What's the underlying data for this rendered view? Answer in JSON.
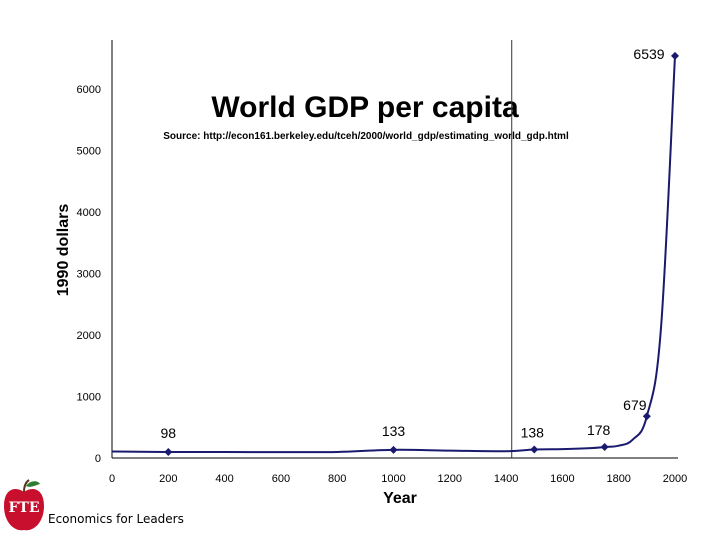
{
  "chart_data": {
    "type": "line",
    "title": "World GDP per capita",
    "subtitle": "Source: http://econ161.berkeley.edu/tceh/2000/world_gdp/estimating_world_gdp.html",
    "xlabel": "Year",
    "ylabel": "1990 dollars",
    "xlim": [
      0,
      2000
    ],
    "ylim": [
      0,
      7000
    ],
    "x_ticks": [
      0,
      200,
      400,
      600,
      800,
      1000,
      1200,
      1400,
      1600,
      1800,
      2000
    ],
    "y_ticks": [
      0,
      1000,
      2000,
      3000,
      4000,
      5000,
      6000
    ],
    "series": [
      {
        "name": "World GDP per capita",
        "color": "#1a1a6e",
        "x": [
          0,
          200,
          400,
          600,
          800,
          1000,
          1200,
          1400,
          1500,
          1600,
          1700,
          1750,
          1800,
          1850,
          1900,
          1950,
          2000
        ],
        "y": [
          105,
          98,
          97,
          96,
          98,
          133,
          120,
          110,
          138,
          145,
          160,
          178,
          200,
          300,
          679,
          2100,
          6539
        ]
      }
    ],
    "markers": [
      {
        "x": 200,
        "y": 98,
        "label": "98"
      },
      {
        "x": 1000,
        "y": 133,
        "label": "133"
      },
      {
        "x": 1500,
        "y": 138,
        "label": "138"
      },
      {
        "x": 1750,
        "y": 178,
        "label": "178"
      },
      {
        "x": 1900,
        "y": 679,
        "label": "679"
      },
      {
        "x": 2000,
        "y": 6539,
        "label": "6539"
      }
    ],
    "reference_line_x": 1420
  },
  "footer": {
    "logo_text": "FTE",
    "org_name": "Economics for Leaders"
  },
  "colors": {
    "line": "#1a1a6e",
    "marker": "#1a1a6e",
    "logo_red": "#c8102e",
    "logo_leaf": "#2e7d32"
  }
}
